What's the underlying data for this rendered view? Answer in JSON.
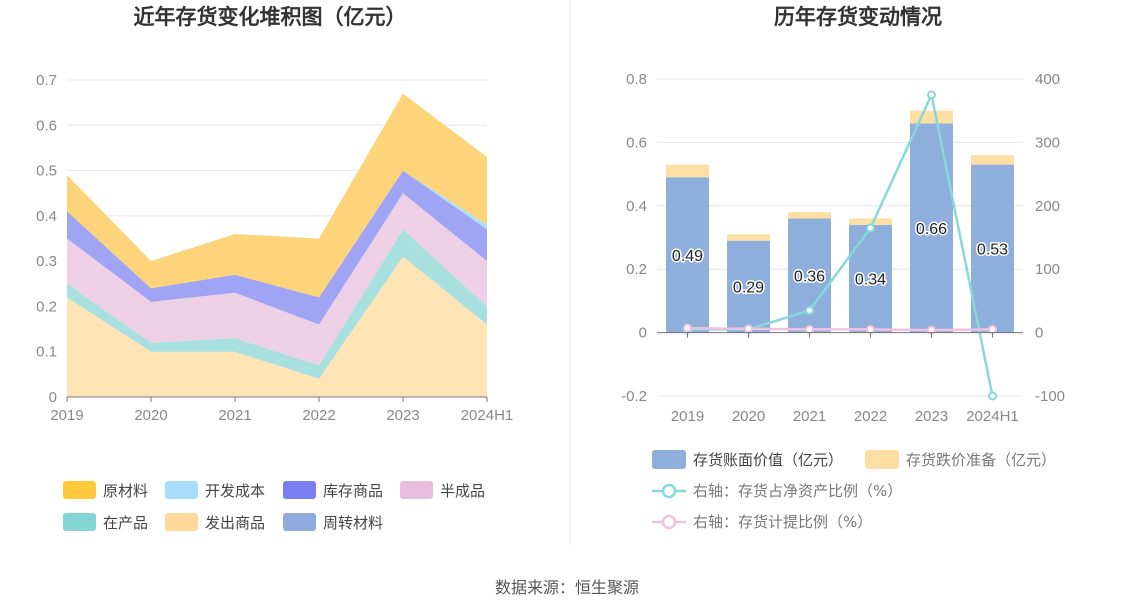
{
  "source_text": "数据来源：恒生聚源",
  "chart_data": [
    {
      "type": "area",
      "stacked": true,
      "title": "近年存货变化堆积图（亿元）",
      "categories": [
        "2019",
        "2020",
        "2021",
        "2022",
        "2023",
        "2024H1"
      ],
      "ylim": [
        0,
        0.7
      ],
      "yticks": [
        "0",
        "0.1",
        "0.2",
        "0.3",
        "0.4",
        "0.5",
        "0.6",
        "0.7"
      ],
      "grid": true,
      "legend_position": "bottom",
      "series": [
        {
          "name": "发出商品",
          "color": "#FFE4B5",
          "values": [
            0.22,
            0.1,
            0.1,
            0.04,
            0.31,
            0.16
          ]
        },
        {
          "name": "在产品",
          "color": "#A8E0E0",
          "values": [
            0.03,
            0.02,
            0.03,
            0.03,
            0.06,
            0.04
          ]
        },
        {
          "name": "周转材料",
          "color": "#8FAADC",
          "values": [
            0.0,
            0.0,
            0.0,
            0.0,
            0.0,
            0.0
          ]
        },
        {
          "name": "半成品",
          "color": "#EED0E6",
          "values": [
            0.1,
            0.09,
            0.1,
            0.09,
            0.08,
            0.1
          ]
        },
        {
          "name": "库存商品",
          "color": "#A0A4F4",
          "values": [
            0.06,
            0.03,
            0.04,
            0.06,
            0.05,
            0.07
          ]
        },
        {
          "name": "开发成本",
          "color": "#A8E2F8",
          "values": [
            0.0,
            0.0,
            0.0,
            0.0,
            0.0,
            0.01
          ]
        },
        {
          "name": "原材料",
          "color": "#FDD479",
          "values": [
            0.08,
            0.06,
            0.09,
            0.13,
            0.17,
            0.15
          ]
        }
      ],
      "legend": [
        {
          "name": "原材料",
          "color": "#FFC83D"
        },
        {
          "name": "开发成本",
          "color": "#A8DDFA"
        },
        {
          "name": "库存商品",
          "color": "#7A7EF0"
        },
        {
          "name": "半成品",
          "color": "#E9BDE0"
        },
        {
          "name": "在产品",
          "color": "#84D6D6"
        },
        {
          "name": "发出商品",
          "color": "#FFD89A"
        },
        {
          "name": "周转材料",
          "color": "#8FAADC"
        }
      ]
    },
    {
      "type": "bar",
      "stacked": true,
      "title": "历年存货变动情况",
      "categories": [
        "2019",
        "2020",
        "2021",
        "2022",
        "2023",
        "2024H1"
      ],
      "ylim": [
        -0.2,
        0.8
      ],
      "yticks": [
        "-0.2",
        "0",
        "0.2",
        "0.4",
        "0.6",
        "0.8"
      ],
      "y2lim": [
        -100,
        400
      ],
      "y2ticks": [
        "-100",
        "0",
        "100",
        "200",
        "300",
        "400"
      ],
      "grid": true,
      "legend_position": "bottom",
      "series": [
        {
          "name": "存货账面价值（亿元）",
          "color": "#8EAEDB",
          "values": [
            0.49,
            0.29,
            0.36,
            0.34,
            0.66,
            0.53
          ],
          "labels": [
            "0.49",
            "0.29",
            "0.36",
            "0.34",
            "0.66",
            "0.53"
          ]
        },
        {
          "name": "存货跌价准备（亿元）",
          "color": "#FDDFA3",
          "values": [
            0.04,
            0.02,
            0.02,
            0.02,
            0.04,
            0.03
          ]
        }
      ],
      "line_series": [
        {
          "name": "右轴：存货占净资产比例（%）",
          "color": "#89D8D8",
          "values": [
            5,
            5,
            35,
            165,
            375,
            -100
          ]
        },
        {
          "name": "右轴：存货计提比例（%）",
          "color": "#EFC2E1",
          "values": [
            7,
            6,
            5,
            5,
            4,
            5
          ]
        }
      ]
    }
  ]
}
